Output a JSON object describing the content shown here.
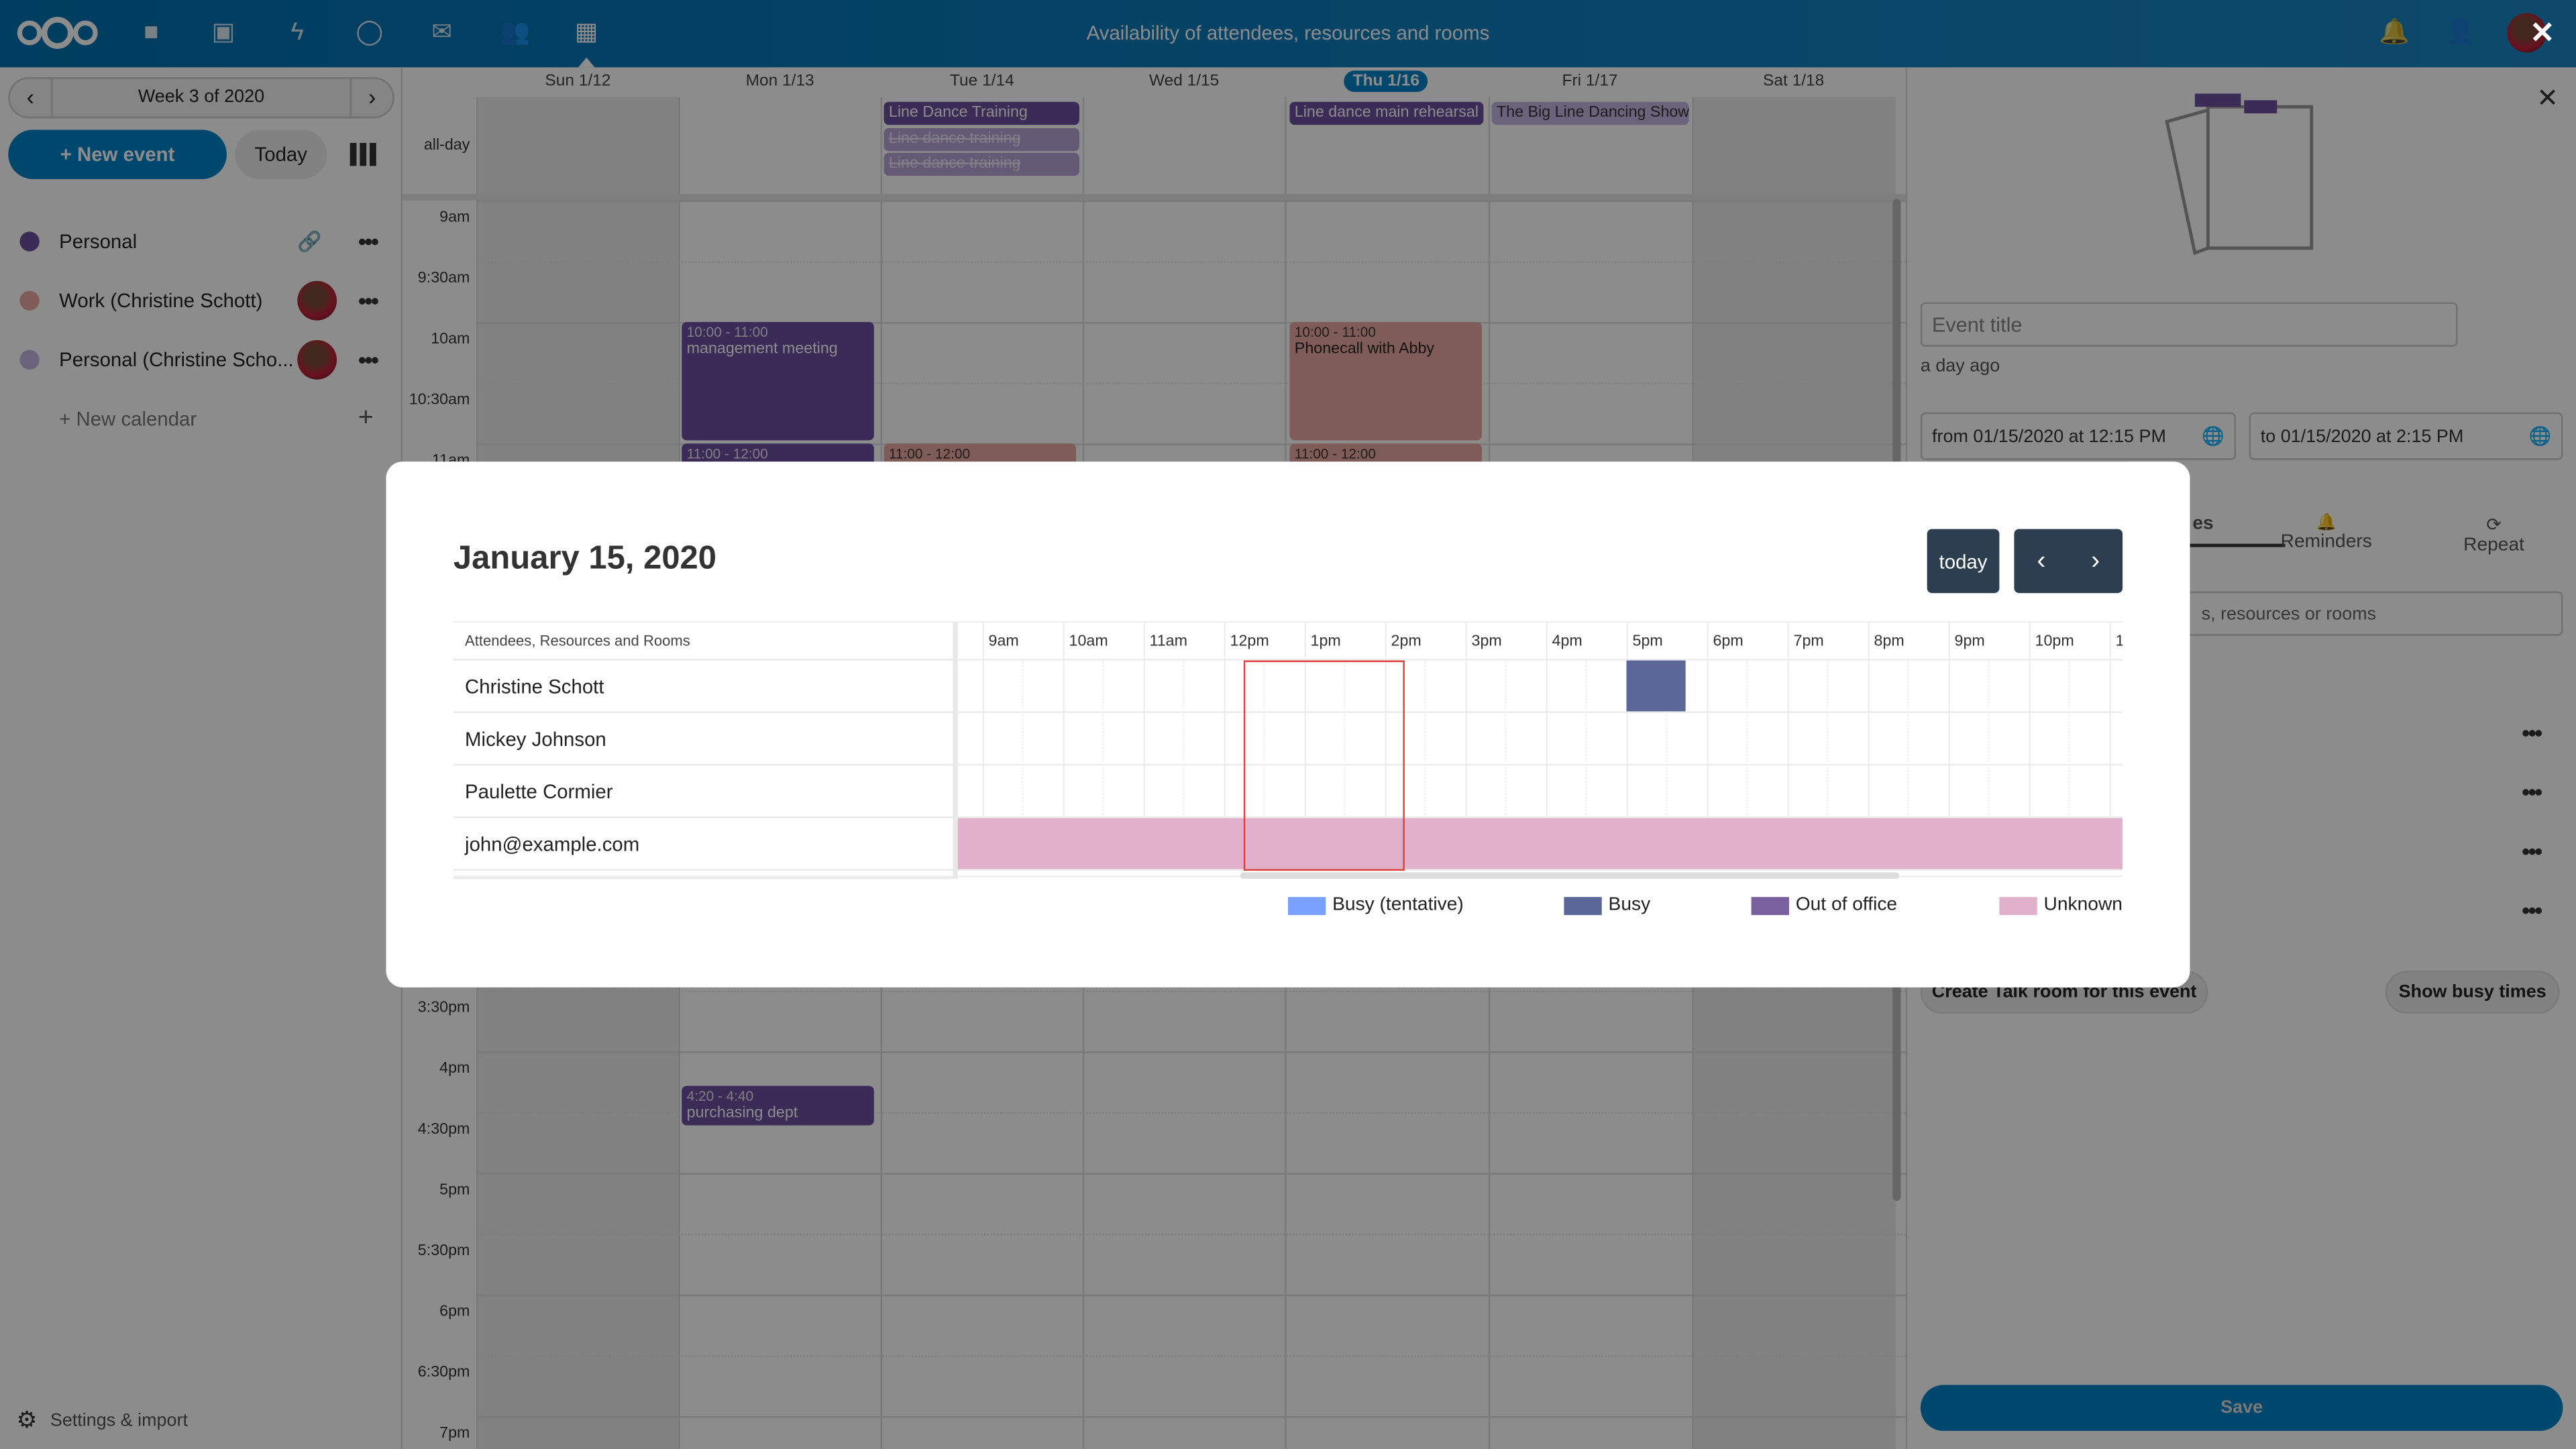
{
  "header": {
    "title": "Availability of attendees, resources and rooms",
    "apps": [
      "logo-icon",
      "files-icon",
      "photos-icon",
      "activity-icon",
      "talk-icon",
      "mail-icon",
      "contacts-icon",
      "calendar-icon"
    ],
    "brand_color": "#0082c9"
  },
  "sidebar": {
    "week_label": "Week 3 of 2020",
    "new_event": "+ New event",
    "today": "Today",
    "calendars": [
      {
        "label": "Personal",
        "color": "#6c4f9e"
      },
      {
        "label": "Work (Christine Schott)",
        "color": "#e8a8a0"
      },
      {
        "label": "Personal (Christine Scho...",
        "color": "#c4b3e0"
      }
    ],
    "new_calendar": "+ New calendar",
    "settings": "Settings & import"
  },
  "calendar": {
    "days": [
      "Sun 1/12",
      "Mon 1/13",
      "Tue 1/14",
      "Wed 1/15",
      "Thu 1/16",
      "Fri 1/17",
      "Sat 1/18"
    ],
    "today_index": 4,
    "allday_label": "all-day",
    "time_labels": [
      "9am",
      "9:30am",
      "10am",
      "10:30am",
      "11am",
      "3:30pm",
      "4pm",
      "4:30pm",
      "5pm",
      "5:30pm",
      "6pm",
      "6:30pm",
      "7pm"
    ],
    "allday_events": [
      {
        "title": "Line Dance Training"
      },
      {
        "title": "Line dance training"
      },
      {
        "title": "Line dance training"
      },
      {
        "title": "Line dance main rehearsal"
      },
      {
        "title": "The Big Line Dancing Show"
      }
    ],
    "events": [
      {
        "time": "10:00 - 11:00",
        "title": "management meeting"
      },
      {
        "time": "11:00 - 12:00",
        "title": ""
      },
      {
        "time": "11:00 - 12:00",
        "title": ""
      },
      {
        "time": "10:00 - 11:00",
        "title": "Phonecall with Abby"
      },
      {
        "time": "11:00 - 12:00",
        "title": ""
      },
      {
        "time": "4:20 - 4:40",
        "title": "purchasing dept"
      }
    ]
  },
  "editor": {
    "title_placeholder": "Event title",
    "modified": "a day ago",
    "from": "from 01/15/2020 at 12:15 PM",
    "to": "to 01/15/2020 at 2:15 PM",
    "tabs": [
      "es",
      "Reminders",
      "Repeat"
    ],
    "attendee_search_placeholder": "s, resources or rooms",
    "create_talk": "Create Talk room for this event",
    "show_busy": "Show busy times",
    "save": "Save"
  },
  "modal": {
    "date": "January 15, 2020",
    "today": "today",
    "column_header": "Attendees, Resources and Rooms",
    "hours": [
      "9am",
      "10am",
      "11am",
      "12pm",
      "1pm",
      "2pm",
      "3pm",
      "4pm",
      "5pm",
      "6pm",
      "7pm",
      "8pm",
      "9pm",
      "10pm",
      "1"
    ],
    "attendees": [
      "Christine Schott",
      "Mickey Johnson",
      "Paulette Cormier",
      "john@example.com"
    ],
    "selection": {
      "start": "12:15",
      "end": "14:15"
    },
    "blocks": [
      {
        "attendee": 0,
        "status": "Busy",
        "start": "17:00",
        "end": "17:45"
      },
      {
        "attendee": 3,
        "status": "Unknown",
        "start": "08:40",
        "end": "23:10"
      }
    ],
    "legend": [
      {
        "label": "Busy (tentative)",
        "color": "#7aa1ff"
      },
      {
        "label": "Busy",
        "color": "#5b6799"
      },
      {
        "label": "Out of office",
        "color": "#7b609f"
      },
      {
        "label": "Unknown",
        "color": "#e1b0cb"
      }
    ]
  }
}
